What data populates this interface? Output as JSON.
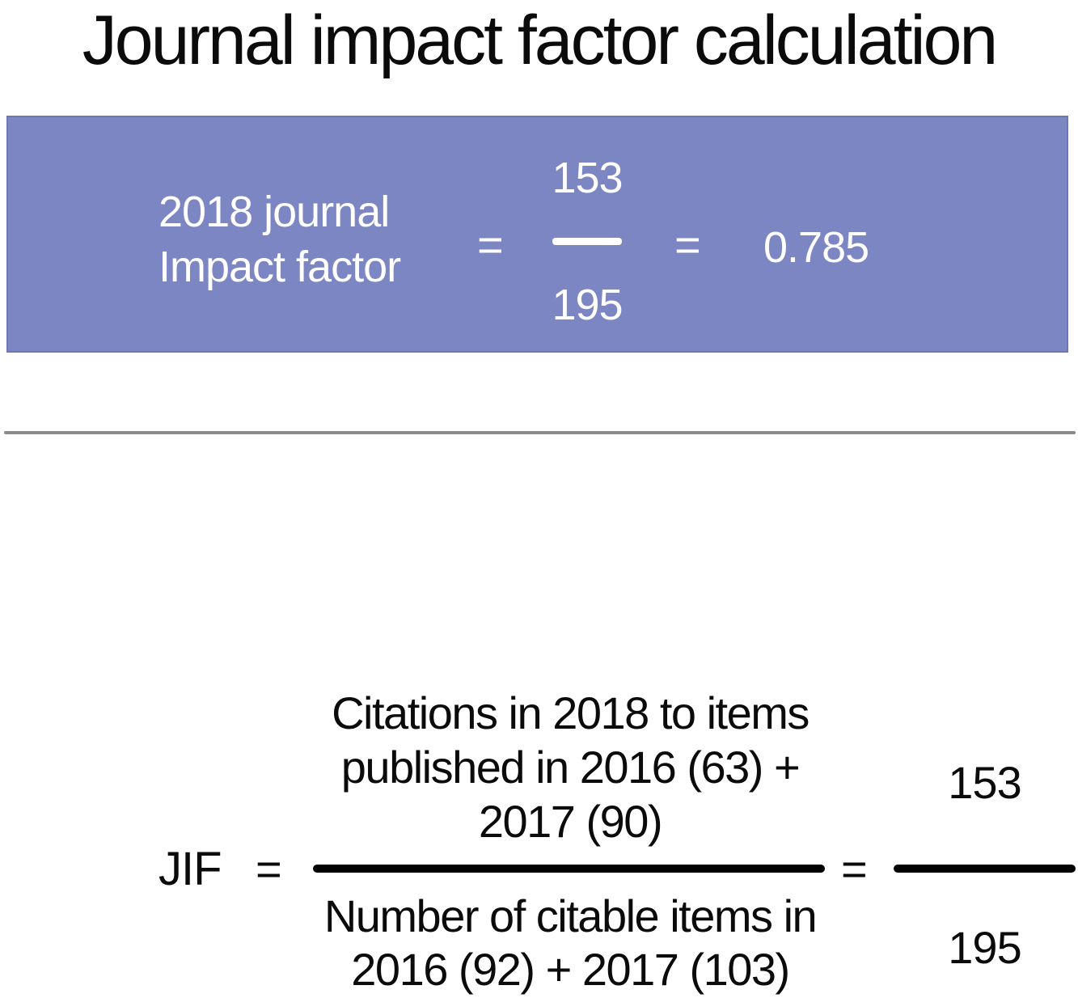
{
  "title": "Journal impact factor calculation",
  "colors": {
    "banner_bg": "#7C86C2",
    "banner_border": "#6D77B0",
    "banner_text": "#FFFFFF",
    "divider": "#8A8A8A",
    "ink": "#0B0B0B"
  },
  "banner": {
    "label_line1": "2018 journal",
    "label_line2": "Impact factor",
    "equals_left": "=",
    "numerator": "153",
    "denominator": "195",
    "equals_right": "=",
    "result": "0.785"
  },
  "formula": {
    "lhs": "JIF",
    "equals_left": "=",
    "numerator_line1": "Citations in 2018 to items",
    "numerator_line2": "published in 2016 (63) +",
    "numerator_line3": "2017 (90)",
    "denominator_line1": "Number of citable items in",
    "denominator_line2": "2016 (92) + 2017 (103)",
    "equals_right": "=",
    "result_numerator": "153",
    "result_denominator": "195"
  }
}
